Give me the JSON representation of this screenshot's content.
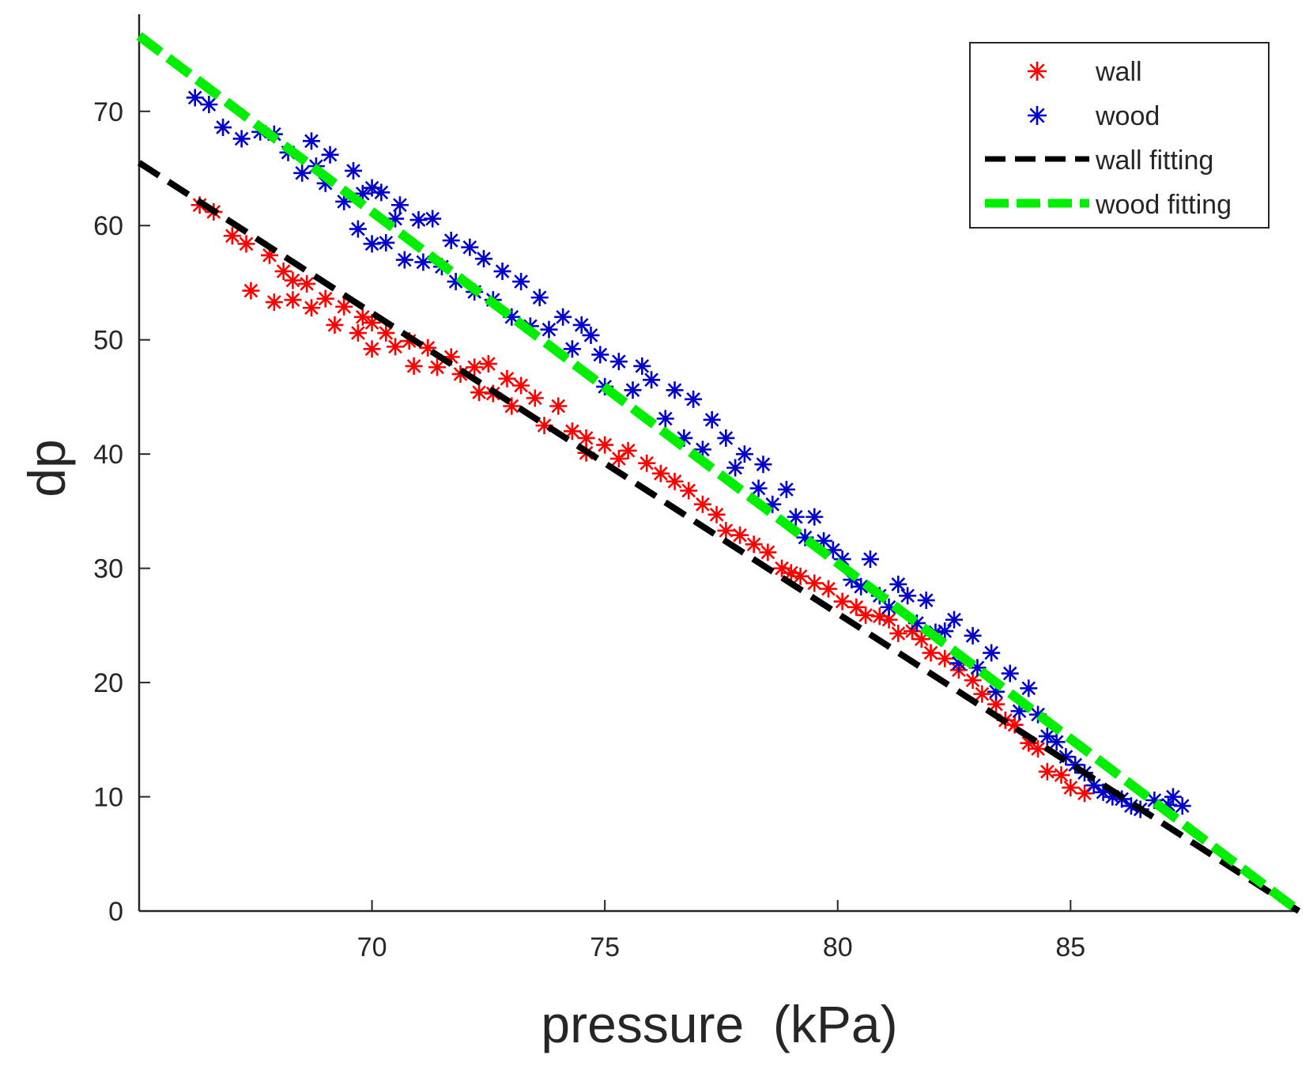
{
  "chart_data": {
    "type": "scatter",
    "title": "",
    "xlabel": "pressure  (kPa)",
    "ylabel": "dp",
    "xlim": [
      65,
      89.9
    ],
    "ylim": [
      0,
      78.5
    ],
    "xticks": [
      70,
      75,
      80,
      85
    ],
    "yticks": [
      0,
      10,
      20,
      30,
      40,
      50,
      60,
      70
    ],
    "grid": false,
    "legend_position": "top-right",
    "series": [
      {
        "name": "wall",
        "kind": "scatter",
        "marker": "*",
        "color": "#ff0000",
        "points": [
          [
            66.3,
            61.8
          ],
          [
            66.6,
            61.2
          ],
          [
            67.0,
            59.1
          ],
          [
            67.3,
            58.4
          ],
          [
            67.4,
            54.3
          ],
          [
            67.8,
            57.4
          ],
          [
            67.9,
            53.3
          ],
          [
            68.1,
            56.0
          ],
          [
            68.3,
            55.2
          ],
          [
            68.3,
            53.5
          ],
          [
            68.6,
            54.9
          ],
          [
            68.7,
            52.8
          ],
          [
            69.0,
            53.6
          ],
          [
            69.2,
            51.3
          ],
          [
            69.4,
            52.9
          ],
          [
            69.7,
            50.6
          ],
          [
            69.8,
            52.0
          ],
          [
            70.0,
            51.5
          ],
          [
            70.0,
            49.2
          ],
          [
            70.3,
            50.6
          ],
          [
            70.5,
            49.4
          ],
          [
            70.8,
            49.9
          ],
          [
            70.9,
            47.7
          ],
          [
            71.2,
            49.3
          ],
          [
            71.4,
            47.6
          ],
          [
            71.7,
            48.5
          ],
          [
            71.9,
            47.0
          ],
          [
            72.2,
            47.6
          ],
          [
            72.3,
            45.4
          ],
          [
            72.5,
            47.9
          ],
          [
            72.6,
            45.3
          ],
          [
            72.9,
            46.6
          ],
          [
            73.0,
            44.2
          ],
          [
            73.2,
            46.0
          ],
          [
            73.5,
            44.9
          ],
          [
            73.7,
            42.5
          ],
          [
            74.0,
            44.2
          ],
          [
            74.3,
            42.0
          ],
          [
            74.6,
            41.4
          ],
          [
            74.6,
            40.1
          ],
          [
            75.0,
            40.8
          ],
          [
            75.3,
            39.6
          ],
          [
            75.5,
            40.3
          ],
          [
            75.9,
            39.2
          ],
          [
            76.2,
            38.3
          ],
          [
            76.5,
            37.6
          ],
          [
            76.8,
            36.8
          ],
          [
            77.1,
            35.6
          ],
          [
            77.4,
            34.7
          ],
          [
            77.6,
            33.3
          ],
          [
            77.9,
            32.9
          ],
          [
            78.2,
            32.1
          ],
          [
            78.5,
            31.4
          ],
          [
            78.8,
            30.0
          ],
          [
            79.0,
            29.6
          ],
          [
            79.2,
            29.3
          ],
          [
            79.5,
            28.7
          ],
          [
            79.8,
            28.2
          ],
          [
            80.1,
            27.1
          ],
          [
            80.4,
            26.6
          ],
          [
            80.6,
            25.9
          ],
          [
            80.9,
            25.8
          ],
          [
            81.1,
            25.5
          ],
          [
            81.3,
            24.3
          ],
          [
            81.6,
            24.5
          ],
          [
            81.8,
            23.8
          ],
          [
            82.0,
            22.6
          ],
          [
            82.3,
            22.1
          ],
          [
            82.6,
            21.1
          ],
          [
            82.9,
            20.2
          ],
          [
            83.1,
            19.0
          ],
          [
            83.4,
            18.1
          ],
          [
            83.6,
            16.7
          ],
          [
            83.8,
            16.3
          ],
          [
            84.1,
            14.7
          ],
          [
            84.3,
            14.2
          ],
          [
            84.5,
            12.2
          ],
          [
            84.8,
            11.9
          ],
          [
            85.0,
            10.8
          ],
          [
            85.3,
            10.3
          ]
        ]
      },
      {
        "name": "wood",
        "kind": "scatter",
        "marker": "*",
        "color": "#0000cc",
        "points": [
          [
            66.2,
            71.2
          ],
          [
            66.5,
            70.6
          ],
          [
            66.8,
            68.6
          ],
          [
            67.2,
            67.6
          ],
          [
            67.6,
            68.2
          ],
          [
            67.9,
            68.0
          ],
          [
            68.2,
            66.4
          ],
          [
            68.5,
            64.6
          ],
          [
            68.7,
            67.4
          ],
          [
            68.8,
            65.2
          ],
          [
            69.0,
            63.7
          ],
          [
            69.1,
            66.2
          ],
          [
            69.4,
            62.1
          ],
          [
            69.6,
            64.8
          ],
          [
            69.7,
            59.7
          ],
          [
            69.8,
            62.8
          ],
          [
            70.0,
            63.3
          ],
          [
            70.0,
            58.4
          ],
          [
            70.2,
            62.9
          ],
          [
            70.3,
            58.5
          ],
          [
            70.5,
            60.6
          ],
          [
            70.6,
            61.8
          ],
          [
            70.7,
            57.0
          ],
          [
            71.0,
            60.5
          ],
          [
            71.1,
            56.8
          ],
          [
            71.3,
            60.6
          ],
          [
            71.5,
            56.4
          ],
          [
            71.7,
            58.7
          ],
          [
            71.8,
            55.1
          ],
          [
            72.1,
            58.1
          ],
          [
            72.2,
            54.2
          ],
          [
            72.4,
            57.1
          ],
          [
            72.6,
            53.5
          ],
          [
            72.8,
            56.0
          ],
          [
            73.0,
            52.0
          ],
          [
            73.2,
            55.1
          ],
          [
            73.4,
            51.2
          ],
          [
            73.6,
            53.7
          ],
          [
            73.8,
            50.9
          ],
          [
            74.1,
            52.0
          ],
          [
            74.3,
            49.2
          ],
          [
            74.5,
            51.3
          ],
          [
            74.7,
            50.4
          ],
          [
            74.9,
            48.7
          ],
          [
            75.0,
            45.9
          ],
          [
            75.3,
            48.1
          ],
          [
            75.6,
            45.6
          ],
          [
            75.8,
            47.7
          ],
          [
            76.0,
            46.5
          ],
          [
            76.3,
            43.1
          ],
          [
            76.5,
            45.6
          ],
          [
            76.7,
            41.4
          ],
          [
            76.9,
            44.8
          ],
          [
            77.1,
            40.4
          ],
          [
            77.3,
            43.0
          ],
          [
            77.6,
            41.4
          ],
          [
            77.8,
            38.8
          ],
          [
            78.0,
            40.0
          ],
          [
            78.3,
            37.0
          ],
          [
            78.4,
            39.1
          ],
          [
            78.6,
            35.6
          ],
          [
            78.9,
            36.9
          ],
          [
            79.1,
            34.5
          ],
          [
            79.3,
            32.7
          ],
          [
            79.5,
            34.5
          ],
          [
            79.7,
            32.4
          ],
          [
            79.9,
            31.6
          ],
          [
            80.1,
            30.8
          ],
          [
            80.3,
            29.0
          ],
          [
            80.5,
            28.4
          ],
          [
            80.7,
            30.8
          ],
          [
            80.9,
            27.6
          ],
          [
            81.1,
            26.6
          ],
          [
            81.3,
            28.6
          ],
          [
            81.5,
            27.6
          ],
          [
            81.7,
            25.2
          ],
          [
            81.9,
            27.2
          ],
          [
            82.1,
            24.4
          ],
          [
            82.3,
            24.5
          ],
          [
            82.5,
            25.5
          ],
          [
            82.6,
            21.7
          ],
          [
            82.9,
            24.1
          ],
          [
            83.0,
            21.3
          ],
          [
            83.3,
            22.6
          ],
          [
            83.4,
            19.2
          ],
          [
            83.7,
            20.8
          ],
          [
            83.9,
            17.5
          ],
          [
            84.1,
            19.5
          ],
          [
            84.3,
            17.2
          ],
          [
            84.5,
            15.3
          ],
          [
            84.7,
            14.8
          ],
          [
            84.9,
            13.5
          ],
          [
            85.1,
            12.8
          ],
          [
            85.3,
            12.1
          ],
          [
            85.5,
            11.0
          ],
          [
            85.7,
            10.4
          ],
          [
            85.9,
            10.0
          ],
          [
            86.1,
            9.8
          ],
          [
            86.3,
            9.2
          ],
          [
            86.5,
            8.9
          ],
          [
            86.8,
            9.7
          ],
          [
            87.1,
            9.3
          ],
          [
            87.4,
            9.2
          ],
          [
            87.2,
            10.0
          ]
        ]
      },
      {
        "name": "wall fitting",
        "kind": "line",
        "style": "dashed",
        "color": "#000000",
        "x": [
          65.0,
          89.9
        ],
        "y": [
          65.5,
          0.0
        ]
      },
      {
        "name": "wood fitting",
        "kind": "line",
        "style": "dashed",
        "color": "#00ee00",
        "x": [
          65.0,
          89.9
        ],
        "y": [
          76.6,
          0.0
        ]
      }
    ]
  }
}
